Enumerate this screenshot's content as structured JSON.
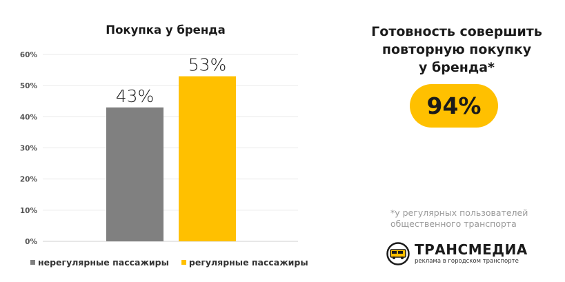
{
  "chart_data": {
    "type": "bar",
    "title": "Покупка у бренда",
    "categories": [
      "нерегулярные пассажиры",
      "регулярные пассажиры"
    ],
    "values": [
      43,
      53
    ],
    "data_labels": [
      "43%",
      "53%"
    ],
    "ylim": [
      0,
      60
    ],
    "yticks": [
      0,
      10,
      20,
      30,
      40,
      50,
      60
    ],
    "ytick_labels": [
      "0%",
      "10%",
      "20%",
      "30%",
      "40%",
      "50%",
      "60%"
    ],
    "grid": true,
    "legend_placement": "bottom",
    "series": [
      {
        "name": "нерегулярные пассажиры",
        "color": "#808080",
        "value": 43
      },
      {
        "name": "регулярные пассажиры",
        "color": "#ffc000",
        "value": 53
      }
    ]
  },
  "readiness": {
    "title_lines": [
      "Готовность совершить",
      "повторную покупку",
      "у бренда*"
    ],
    "value": "94%",
    "color": "#ffc000"
  },
  "footnote_lines": [
    "*у регулярных пользователей",
    "общественного транспорта"
  ],
  "logo": {
    "name": "ТРАНСМЕДИА",
    "tagline": "реклама в городском транспорте",
    "icon": "bus-icon"
  }
}
